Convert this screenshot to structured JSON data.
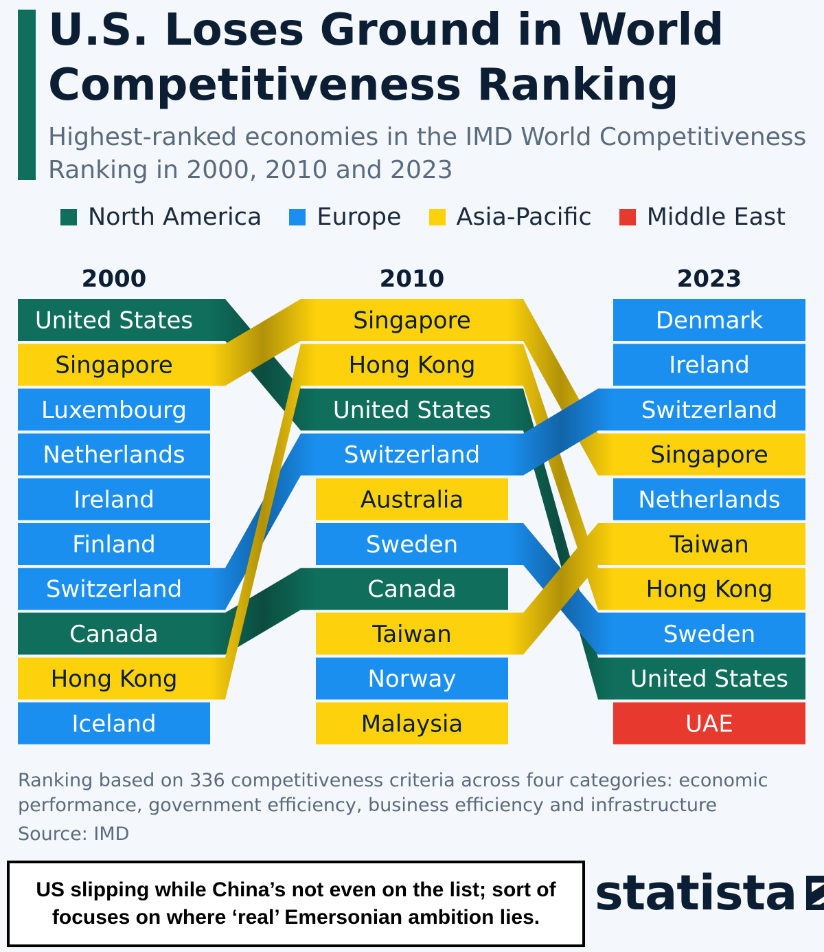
{
  "title": "U.S. Loses Ground in World Competitiveness Ranking",
  "subtitle": "Highest-ranked economies in the IMD World Competitiveness Ranking in 2000, 2010 and 2023",
  "colors": {
    "north_america": "#0f6e5c",
    "europe": "#1a8ff0",
    "asia_pacific": "#fdd10b",
    "middle_east": "#e8392e",
    "accent": "#0f6e5c"
  },
  "legend": [
    {
      "label": "North America",
      "region": "north_america"
    },
    {
      "label": "Europe",
      "region": "europe"
    },
    {
      "label": "Asia-Pacific",
      "region": "asia_pacific"
    },
    {
      "label": "Middle East",
      "region": "middle_east"
    }
  ],
  "chart_data": {
    "type": "table",
    "years": [
      "2000",
      "2010",
      "2023"
    ],
    "rankings": {
      "2000": [
        {
          "country": "United States",
          "region": "north_america"
        },
        {
          "country": "Singapore",
          "region": "asia_pacific"
        },
        {
          "country": "Luxembourg",
          "region": "europe"
        },
        {
          "country": "Netherlands",
          "region": "europe"
        },
        {
          "country": "Ireland",
          "region": "europe"
        },
        {
          "country": "Finland",
          "region": "europe"
        },
        {
          "country": "Switzerland",
          "region": "europe"
        },
        {
          "country": "Canada",
          "region": "north_america"
        },
        {
          "country": "Hong Kong",
          "region": "asia_pacific"
        },
        {
          "country": "Iceland",
          "region": "europe"
        }
      ],
      "2010": [
        {
          "country": "Singapore",
          "region": "asia_pacific"
        },
        {
          "country": "Hong Kong",
          "region": "asia_pacific"
        },
        {
          "country": "United States",
          "region": "north_america"
        },
        {
          "country": "Switzerland",
          "region": "europe"
        },
        {
          "country": "Australia",
          "region": "asia_pacific"
        },
        {
          "country": "Sweden",
          "region": "europe"
        },
        {
          "country": "Canada",
          "region": "north_america"
        },
        {
          "country": "Taiwan",
          "region": "asia_pacific"
        },
        {
          "country": "Norway",
          "region": "europe"
        },
        {
          "country": "Malaysia",
          "region": "asia_pacific"
        }
      ],
      "2023": [
        {
          "country": "Denmark",
          "region": "europe"
        },
        {
          "country": "Ireland",
          "region": "europe"
        },
        {
          "country": "Switzerland",
          "region": "europe"
        },
        {
          "country": "Singapore",
          "region": "asia_pacific"
        },
        {
          "country": "Netherlands",
          "region": "europe"
        },
        {
          "country": "Taiwan",
          "region": "asia_pacific"
        },
        {
          "country": "Hong Kong",
          "region": "asia_pacific"
        },
        {
          "country": "Sweden",
          "region": "europe"
        },
        {
          "country": "United States",
          "region": "north_america"
        },
        {
          "country": "UAE",
          "region": "middle_east"
        }
      ]
    }
  },
  "footnote": "Ranking based on 336 competitiveness criteria across four categories: economic performance, government efficiency, business efficiency and infrastructure",
  "source": "Source: IMD",
  "caption": "US slipping while China’s not even on the list; sort of focuses on where ‘real’ Emersonian ambition lies.",
  "brand": {
    "name": "statista",
    "logo_icon": "statista-logo-icon"
  }
}
